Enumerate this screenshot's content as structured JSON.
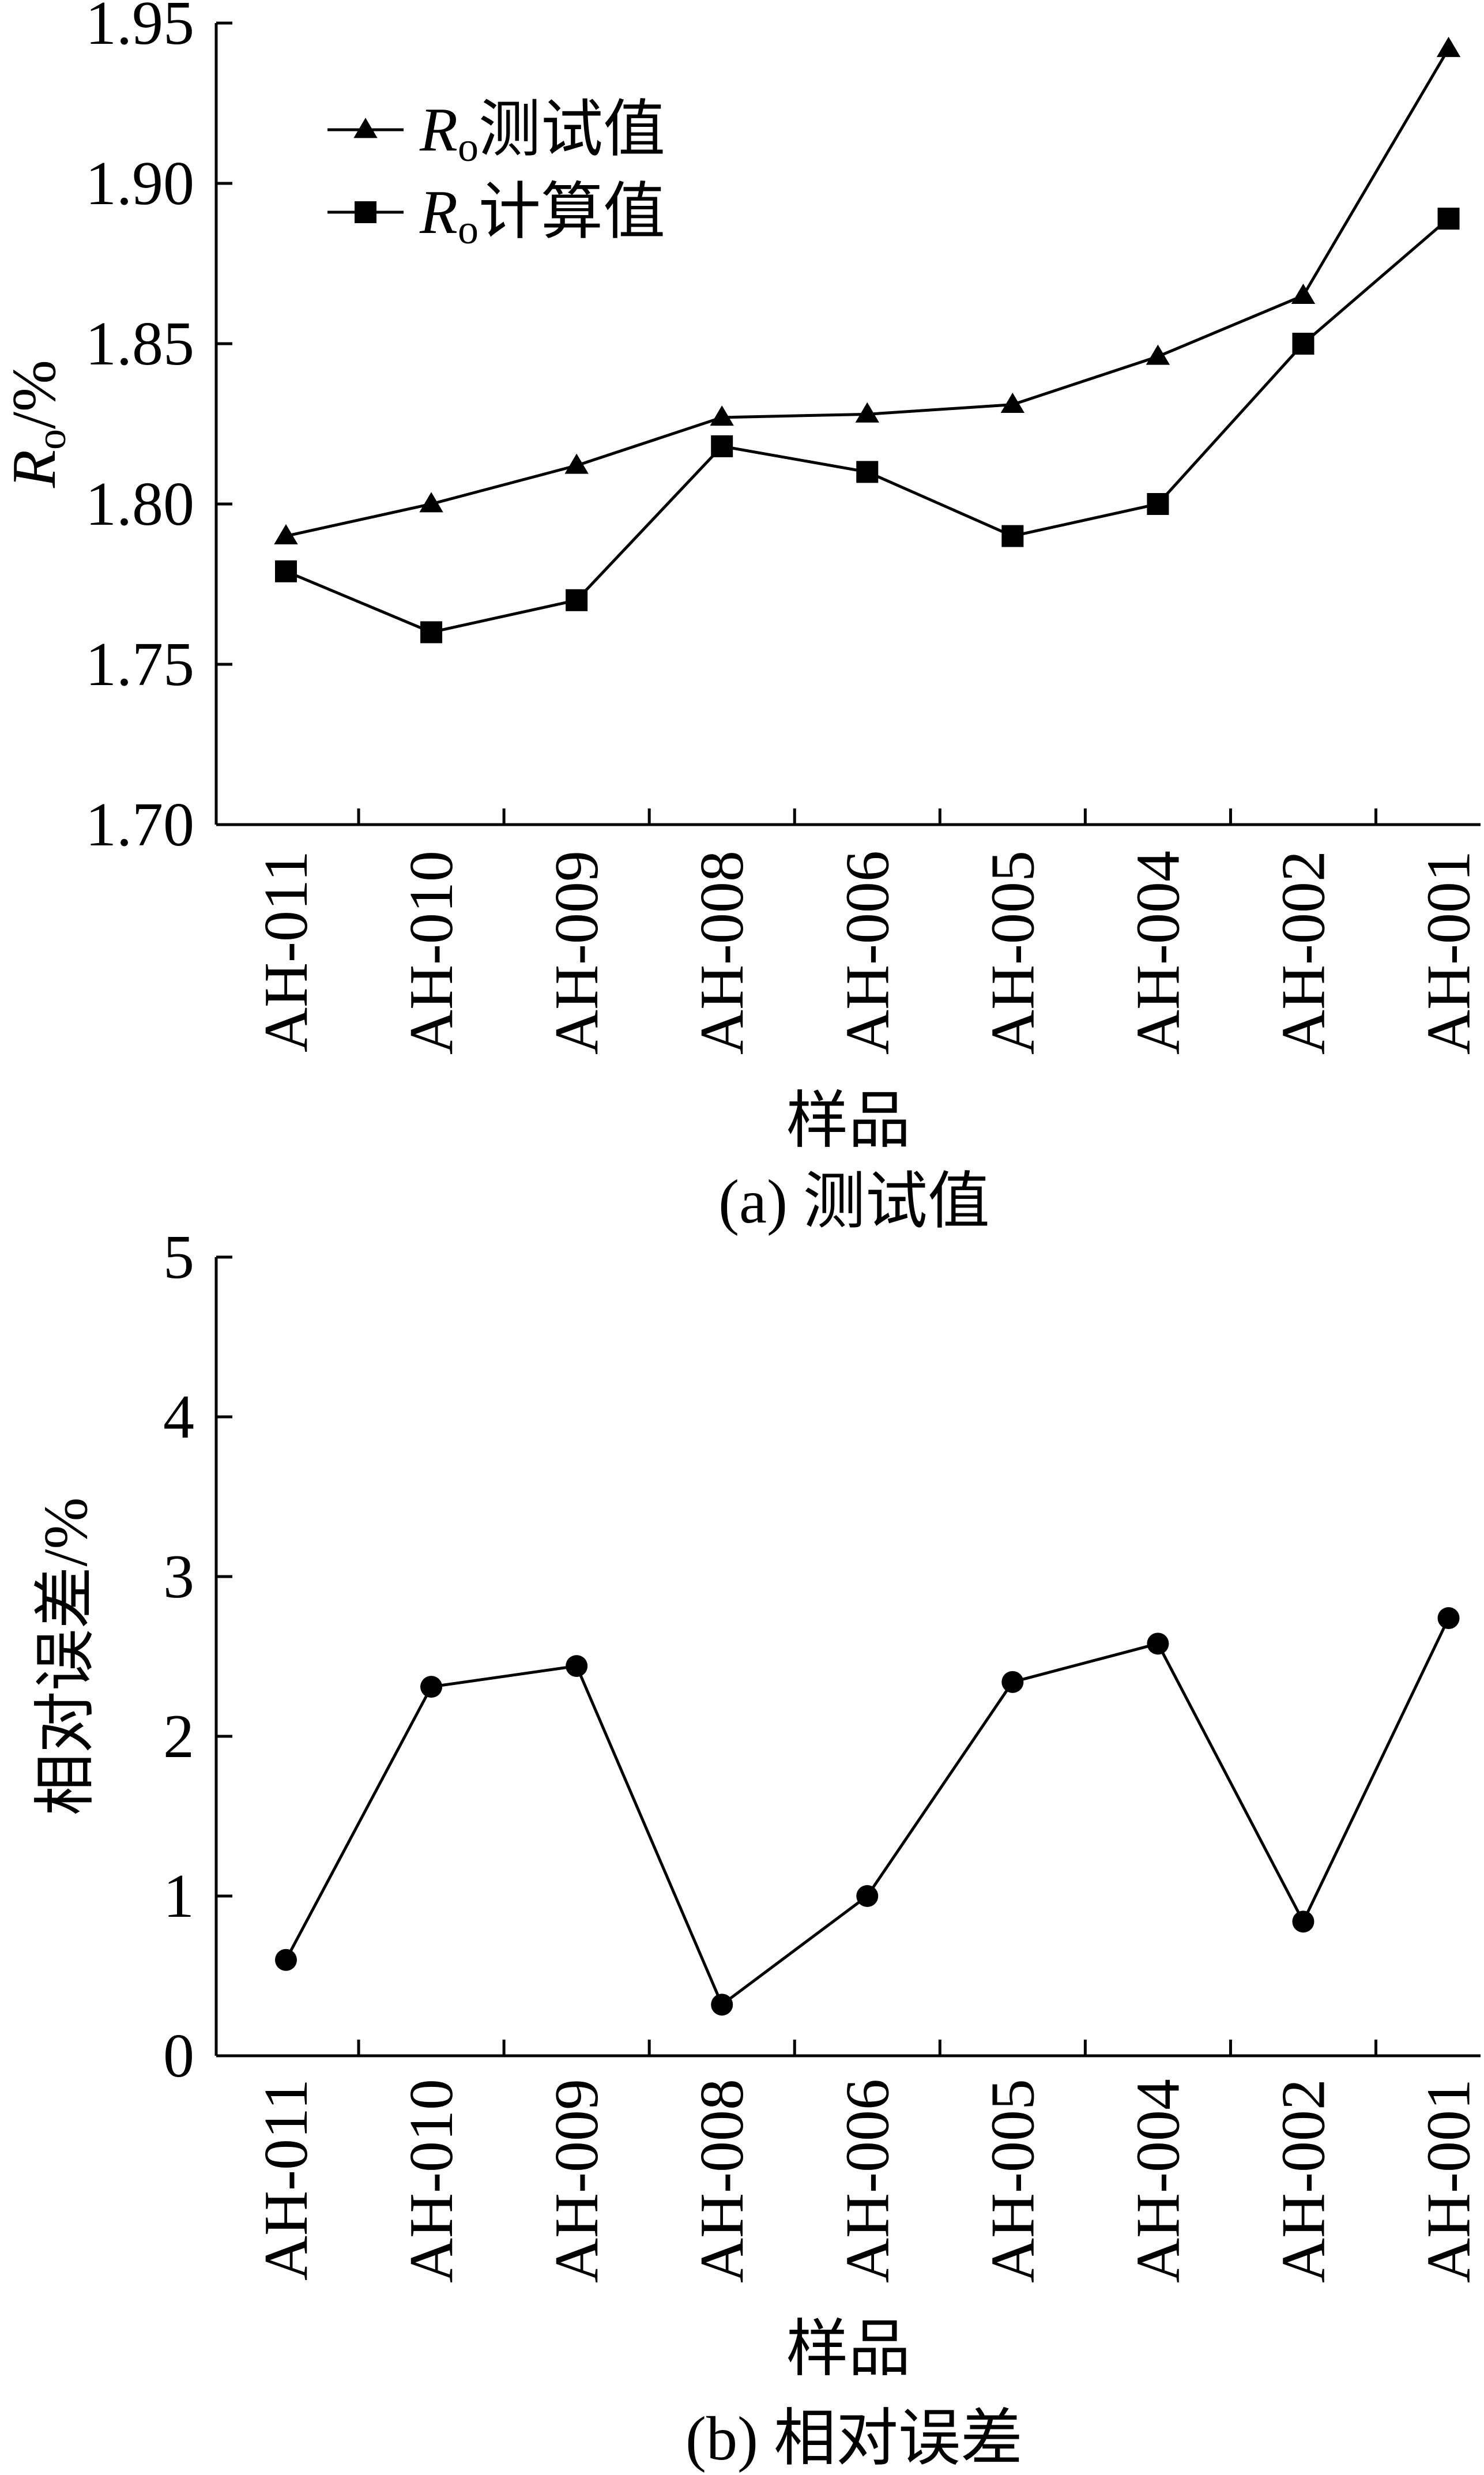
{
  "chart_data": [
    {
      "type": "line",
      "caption": "(a) 测试值",
      "xlabel": "样品",
      "ylabel": "Ro/%",
      "ylabel_main": "R",
      "ylabel_sub": "o",
      "ylabel_rest": "/%",
      "categories": [
        "AH-011",
        "AH-010",
        "AH-009",
        "AH-008",
        "AH-006",
        "AH-005",
        "AH-004",
        "AH-002",
        "AH-001"
      ],
      "ylim": [
        1.7,
        1.95
      ],
      "yticks": [
        "1.70",
        "1.75",
        "1.80",
        "1.85",
        "1.90",
        "1.95"
      ],
      "legend_position": "top-left",
      "series": [
        {
          "name": "Ro测试值",
          "name_main": "R",
          "name_sub": "o",
          "name_rest": "测试值",
          "marker": "triangle",
          "values": [
            1.79,
            1.8,
            1.812,
            1.827,
            1.828,
            1.831,
            1.846,
            1.865,
            1.942
          ]
        },
        {
          "name": "Ro计算值",
          "name_main": "R",
          "name_sub": "o",
          "name_rest": "计算值",
          "marker": "square",
          "values": [
            1.779,
            1.76,
            1.77,
            1.818,
            1.81,
            1.79,
            1.8,
            1.85,
            1.889
          ]
        }
      ]
    },
    {
      "type": "line",
      "caption": "(b) 相对误差",
      "xlabel": "样品",
      "ylabel": "相对误差/%",
      "categories": [
        "AH-011",
        "AH-010",
        "AH-009",
        "AH-008",
        "AH-006",
        "AH-005",
        "AH-004",
        "AH-002",
        "AH-001"
      ],
      "ylim": [
        0,
        5
      ],
      "yticks": [
        "0",
        "1",
        "2",
        "3",
        "4",
        "5"
      ],
      "series": [
        {
          "marker": "circle",
          "values": [
            0.6,
            2.31,
            2.44,
            0.32,
            1.0,
            2.34,
            2.58,
            0.84,
            2.74
          ]
        }
      ]
    }
  ]
}
